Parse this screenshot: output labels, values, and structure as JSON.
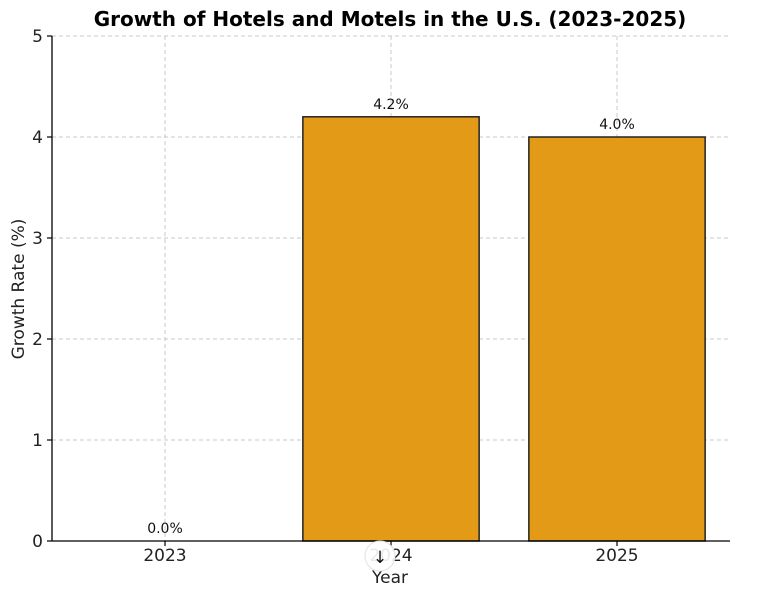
{
  "chart_data": {
    "type": "bar",
    "title": "Growth of Hotels and Motels in the U.S. (2023-2025)",
    "xlabel": "Year",
    "ylabel": "Growth Rate (%)",
    "categories": [
      "2023",
      "2024",
      "2025"
    ],
    "values": [
      0.0,
      4.2,
      4.0
    ],
    "data_labels": [
      "0.0%",
      "4.2%",
      "4.0%"
    ],
    "ylim": [
      0,
      5
    ],
    "yticks": [
      "0",
      "1",
      "2",
      "3",
      "4",
      "5"
    ],
    "grid": true,
    "bar_color": "#E39B17",
    "bar_edge_color": "#222222"
  },
  "overlay": {
    "scroll_down_icon": "arrow-down-icon",
    "glyph": "↓"
  }
}
